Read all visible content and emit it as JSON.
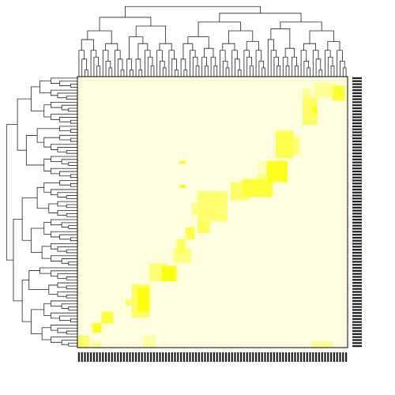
{
  "chart_data": {
    "type": "heatmap",
    "title": "",
    "xlabel": "",
    "ylabel": "",
    "n_rows": 90,
    "n_cols": 90,
    "value_range": [
      0,
      1
    ],
    "colormap": [
      "#ffffe0",
      "#ffff00"
    ],
    "row_dendrogram": true,
    "column_dendrogram": true,
    "row_labels_position": "right",
    "column_labels_position": "bottom",
    "row_labels_legible": false,
    "column_labels_legible": false,
    "blocks": [
      {
        "rows": [
          0,
          4
        ],
        "cols": [
          0,
          4
        ],
        "value": 0.55
      },
      {
        "rows": [
          0,
          2
        ],
        "cols": [
          5,
          8
        ],
        "value": 0.38
      },
      {
        "rows": [
          5,
          8
        ],
        "cols": [
          5,
          8
        ],
        "value": 0.92
      },
      {
        "rows": [
          0,
          2
        ],
        "cols": [
          78,
          85
        ],
        "value": 0.35
      },
      {
        "rows": [
          8,
          12
        ],
        "cols": [
          8,
          12
        ],
        "value": 0.75
      },
      {
        "rows": [
          14,
          16
        ],
        "cols": [
          16,
          18
        ],
        "value": 0.6
      },
      {
        "rows": [
          10,
          21
        ],
        "cols": [
          18,
          24
        ],
        "value": 0.55
      },
      {
        "rows": [
          12,
          20
        ],
        "cols": [
          20,
          24
        ],
        "value": 0.95
      },
      {
        "rows": [
          0,
          4
        ],
        "cols": [
          22,
          26
        ],
        "value": 0.3
      },
      {
        "rows": [
          22,
          28
        ],
        "cols": [
          24,
          30
        ],
        "value": 0.5
      },
      {
        "rows": [
          22,
          27
        ],
        "cols": [
          28,
          33
        ],
        "value": 0.97
      },
      {
        "rows": [
          28,
          33
        ],
        "cols": [
          32,
          38
        ],
        "value": 0.4
      },
      {
        "rows": [
          31,
          36
        ],
        "cols": [
          33,
          36
        ],
        "value": 0.6
      },
      {
        "rows": [
          36,
          40
        ],
        "cols": [
          36,
          39
        ],
        "value": 0.7
      },
      {
        "rows": [
          38,
          42
        ],
        "cols": [
          40,
          44
        ],
        "value": 0.6
      },
      {
        "rows": [
          44,
          48
        ],
        "cols": [
          38,
          50
        ],
        "value": 0.4
      },
      {
        "rows": [
          42,
          52
        ],
        "cols": [
          40,
          50
        ],
        "value": 0.5
      },
      {
        "rows": [
          49,
          55
        ],
        "cols": [
          51,
          57
        ],
        "value": 0.55
      },
      {
        "rows": [
          50,
          56
        ],
        "cols": [
          55,
          65
        ],
        "value": 0.75
      },
      {
        "rows": [
          54,
          58
        ],
        "cols": [
          60,
          63
        ],
        "value": 0.4
      },
      {
        "rows": [
          55,
          62
        ],
        "cols": [
          63,
          70
        ],
        "value": 0.85
      },
      {
        "rows": [
          59,
          62
        ],
        "cols": [
          60,
          63
        ],
        "value": 0.2
      },
      {
        "rows": [
          63,
          72
        ],
        "cols": [
          66,
          72
        ],
        "value": 0.65
      },
      {
        "rows": [
          64,
          70
        ],
        "cols": [
          70,
          74
        ],
        "value": 0.45
      },
      {
        "rows": [
          74,
          83
        ],
        "cols": [
          75,
          80
        ],
        "value": 0.55
      },
      {
        "rows": [
          80,
          86
        ],
        "cols": [
          75,
          78
        ],
        "value": 0.35
      },
      {
        "rows": [
          83,
          88
        ],
        "cols": [
          79,
          86
        ],
        "value": 0.35
      },
      {
        "rows": [
          82,
          87
        ],
        "cols": [
          85,
          89
        ],
        "value": 0.8
      },
      {
        "rows": [
          78,
          80
        ],
        "cols": [
          78,
          80
        ],
        "value": 0.9
      },
      {
        "rows": [
          61,
          62
        ],
        "cols": [
          34,
          36
        ],
        "value": 0.9
      },
      {
        "rows": [
          53,
          54
        ],
        "cols": [
          34,
          36
        ],
        "value": 0.9
      }
    ]
  }
}
